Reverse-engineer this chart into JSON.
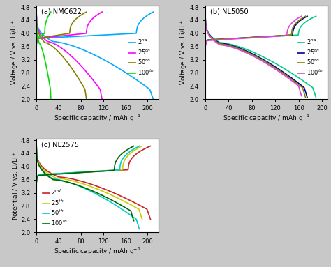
{
  "panels": [
    {
      "label": "(a) NMC622",
      "ylabel": "Voltage / V vs. Li/Li$^+$",
      "xlabel": "Specific capacity / mAh g$^{-1}$",
      "ylim": [
        2.0,
        4.85
      ],
      "xlim": [
        0,
        220
      ],
      "yticks": [
        2.0,
        2.4,
        2.8,
        3.2,
        3.6,
        4.0,
        4.4,
        4.8
      ],
      "xticks": [
        0,
        40,
        80,
        120,
        160,
        200
      ],
      "legend_labels": [
        "2$^{nd}$",
        "25$^{th}$",
        "50$^{th}$",
        "100$^{th}$"
      ],
      "colors": [
        "#00aaff",
        "#ff00ff",
        "#808000",
        "#00dd00"
      ],
      "charge_profiles": [
        {
          "x_start": 0,
          "x_end": 210,
          "v_start": 3.65,
          "v_plateau": 3.85,
          "v_end": 4.65,
          "plateau_end": 180
        },
        {
          "x_start": 0,
          "x_end": 118,
          "v_start": 3.65,
          "v_plateau": 3.85,
          "v_end": 4.65,
          "plateau_end": 90
        },
        {
          "x_start": 0,
          "x_end": 90,
          "v_start": 3.65,
          "v_plateau": 3.85,
          "v_end": 4.65,
          "plateau_end": 60
        },
        {
          "x_start": 0,
          "x_end": 26,
          "v_start": 3.65,
          "v_plateau": 3.85,
          "v_end": 4.65,
          "plateau_end": 15
        }
      ],
      "discharge_profiles": [
        {
          "x_start": 0,
          "x_end": 210,
          "v_start": 2.0,
          "v_plateau": 3.75,
          "v_end": 4.6,
          "plateau_start": 30
        },
        {
          "x_start": 0,
          "x_end": 118,
          "v_start": 2.0,
          "v_plateau": 3.75,
          "v_end": 4.6,
          "plateau_start": 20
        },
        {
          "x_start": 0,
          "x_end": 90,
          "v_start": 2.0,
          "v_plateau": 3.72,
          "v_end": 4.6,
          "plateau_start": 15
        },
        {
          "x_start": 0,
          "x_end": 26,
          "v_start": 2.0,
          "v_plateau": 3.7,
          "v_end": 4.6,
          "plateau_start": 5
        }
      ]
    },
    {
      "label": "(b) NL5050",
      "ylabel": "Voltage / V vs. Li/Li$^+$",
      "xlabel": "Specific capacity / mAh g$^{-1}$",
      "ylim": [
        2.0,
        4.85
      ],
      "xlim": [
        0,
        210
      ],
      "yticks": [
        2.0,
        2.4,
        2.8,
        3.2,
        3.6,
        4.0,
        4.4,
        4.8
      ],
      "xticks": [
        0,
        40,
        80,
        120,
        160,
        200
      ],
      "legend_labels": [
        "2$^{nd}$",
        "25$^{th}$",
        "50$^{th}$",
        "100$^{th}$"
      ],
      "colors": [
        "#00cc88",
        "#00008b",
        "#808000",
        "#dd44dd"
      ],
      "charge_profiles": [
        {
          "x_start": 0,
          "x_end": 190,
          "v_start": 3.6,
          "v_plateau": 3.8,
          "v_end": 4.52,
          "plateau_end": 160
        },
        {
          "x_start": 0,
          "x_end": 175,
          "v_start": 3.6,
          "v_plateau": 3.8,
          "v_end": 4.52,
          "plateau_end": 150
        },
        {
          "x_start": 0,
          "x_end": 172,
          "v_start": 3.6,
          "v_plateau": 3.8,
          "v_end": 4.52,
          "plateau_end": 148
        },
        {
          "x_start": 0,
          "x_end": 165,
          "v_start": 3.58,
          "v_plateau": 3.78,
          "v_end": 4.52,
          "plateau_end": 140
        }
      ],
      "discharge_profiles": [
        {
          "x_start": 0,
          "x_end": 190,
          "v_start": 2.05,
          "v_plateau": 3.72,
          "v_end": 4.52,
          "plateau_start": 25
        },
        {
          "x_start": 0,
          "x_end": 175,
          "v_start": 2.05,
          "v_plateau": 3.7,
          "v_end": 4.52,
          "plateau_start": 25
        },
        {
          "x_start": 0,
          "x_end": 172,
          "v_start": 2.05,
          "v_plateau": 3.68,
          "v_end": 4.52,
          "plateau_start": 25
        },
        {
          "x_start": 0,
          "x_end": 165,
          "v_start": 2.1,
          "v_plateau": 3.65,
          "v_end": 4.52,
          "plateau_start": 25
        }
      ]
    },
    {
      "label": "(c) NL2575",
      "ylabel": "Potential / V vs. Li/Li$^+$",
      "xlabel": "Specific capacity / mAh g$^{-1}$",
      "ylim": [
        2.0,
        4.85
      ],
      "xlim": [
        0,
        220
      ],
      "yticks": [
        2.0,
        2.4,
        2.8,
        3.2,
        3.6,
        4.0,
        4.4,
        4.8
      ],
      "xticks": [
        0,
        40,
        80,
        120,
        160,
        200
      ],
      "legend_labels": [
        "2$^{nd}$",
        "25$^{th}$",
        "50$^{th}$",
        "100$^{th}$"
      ],
      "colors": [
        "#cc2222",
        "#cccc00",
        "#00cccc",
        "#006600"
      ],
      "charge_profiles": [
        {
          "x_start": 0,
          "x_end": 205,
          "v_start": 3.5,
          "v_plateau": 3.75,
          "v_end": 4.62,
          "plateau_end": 165
        },
        {
          "x_start": 0,
          "x_end": 190,
          "v_start": 3.5,
          "v_plateau": 3.75,
          "v_end": 4.62,
          "plateau_end": 155
        },
        {
          "x_start": 0,
          "x_end": 185,
          "v_start": 3.5,
          "v_plateau": 3.75,
          "v_end": 4.62,
          "plateau_end": 150
        },
        {
          "x_start": 0,
          "x_end": 175,
          "v_start": 3.5,
          "v_plateau": 3.73,
          "v_end": 4.62,
          "plateau_end": 140
        }
      ],
      "discharge_profiles": [
        {
          "x_start": 0,
          "x_end": 205,
          "v_start": 2.4,
          "v_plateau": 3.68,
          "v_end": 4.62,
          "plateau_start": 40
        },
        {
          "x_start": 0,
          "x_end": 190,
          "v_start": 2.4,
          "v_plateau": 3.65,
          "v_end": 4.62,
          "plateau_start": 35
        },
        {
          "x_start": 0,
          "x_end": 185,
          "v_start": 2.1,
          "v_plateau": 3.62,
          "v_end": 4.62,
          "plateau_start": 30
        },
        {
          "x_start": 0,
          "x_end": 175,
          "v_start": 2.35,
          "v_plateau": 3.6,
          "v_end": 4.62,
          "plateau_start": 30
        }
      ]
    }
  ],
  "background_color": "#ffffff",
  "fig_background": "#ffffff",
  "outer_background": "#c8c8c8"
}
